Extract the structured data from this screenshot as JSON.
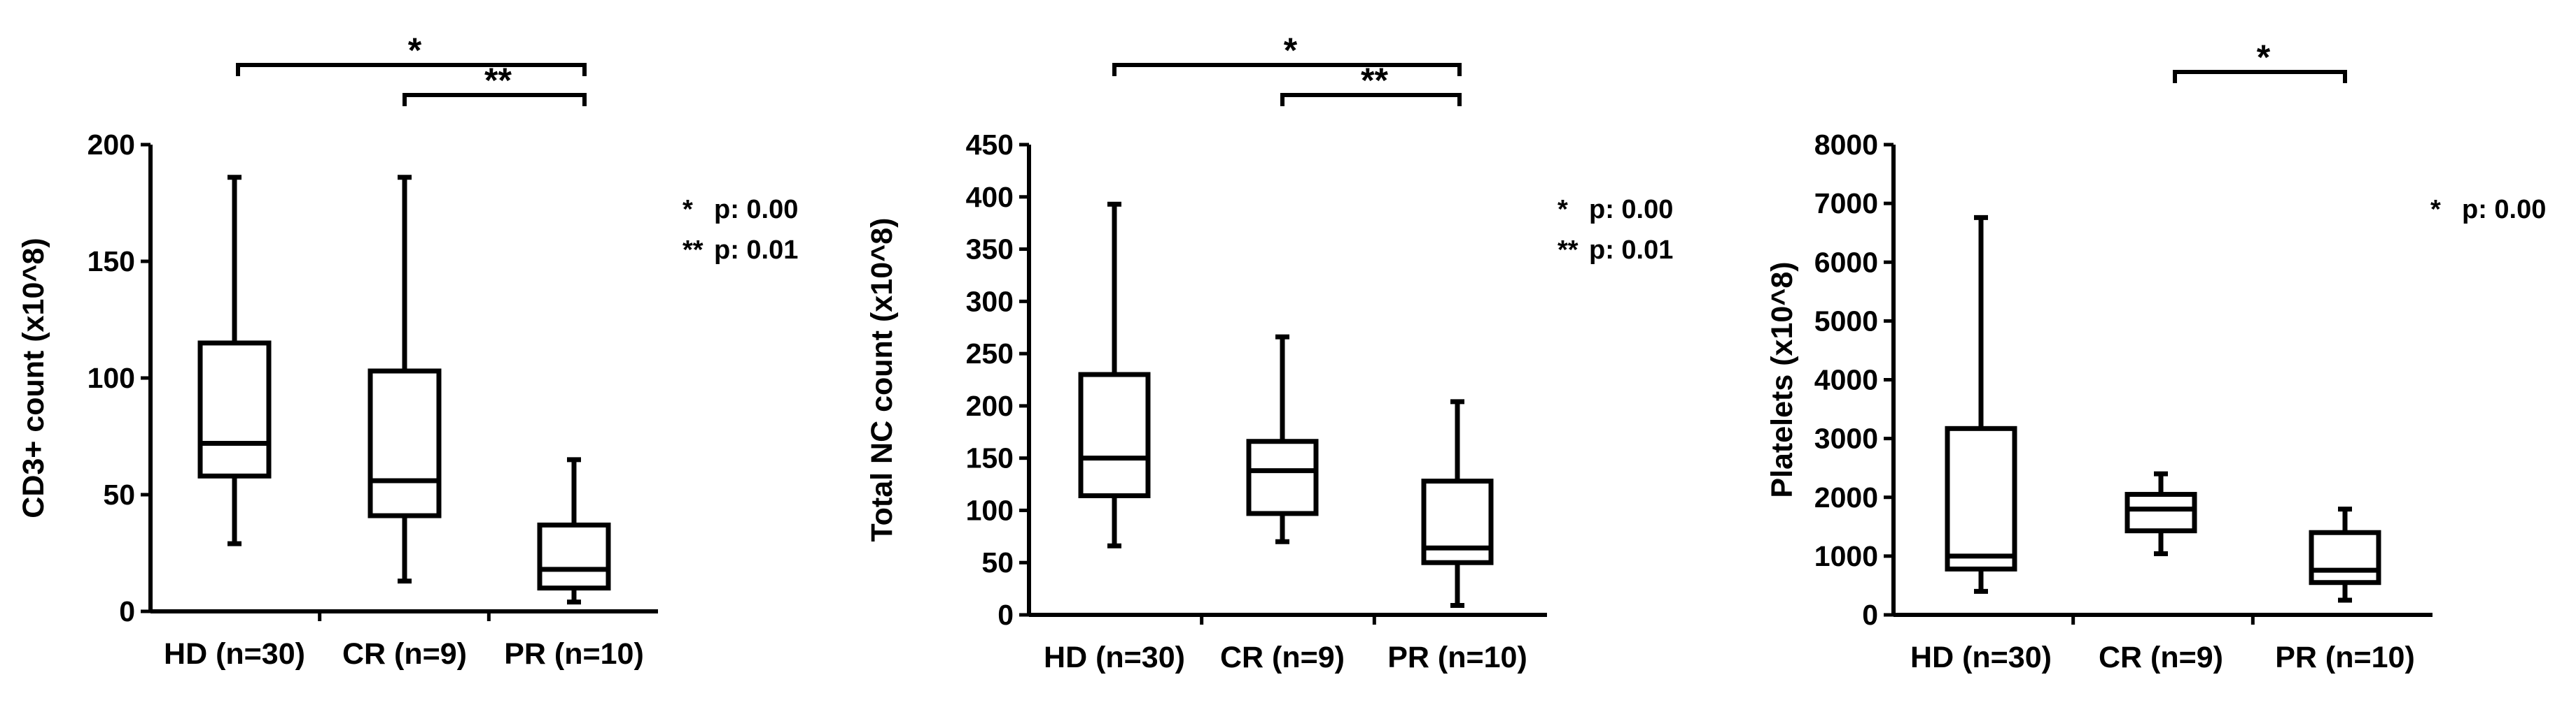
{
  "chart_data": [
    {
      "type": "box",
      "title": "",
      "xlabel": "",
      "ylabel": "CD3+ count (x10^8)",
      "ylim": [
        0,
        200
      ],
      "yticks": [
        0,
        50,
        100,
        150,
        200
      ],
      "categories": [
        "HD (n=30)",
        "CR (n=9)",
        "PR (n=10)"
      ],
      "boxes": [
        {
          "min": 29,
          "q1": 58,
          "median": 72,
          "q3": 115,
          "max": 186
        },
        {
          "min": 13,
          "q1": 41,
          "median": 56,
          "q3": 103,
          "max": 186
        },
        {
          "min": 4,
          "q1": 10,
          "median": 18,
          "q3": 37,
          "max": 65
        }
      ],
      "brackets": [
        {
          "from": 0,
          "to": 2,
          "label": "*"
        },
        {
          "from": 1,
          "to": 2,
          "label": "**"
        }
      ],
      "notes": [
        {
          "mark": "*",
          "text": "p: 0.00"
        },
        {
          "mark": "**",
          "text": "p: 0.01"
        }
      ]
    },
    {
      "type": "box",
      "title": "",
      "xlabel": "",
      "ylabel": "Total NC count (x10^8)",
      "ylim": [
        0,
        450
      ],
      "yticks": [
        0,
        50,
        100,
        150,
        200,
        250,
        300,
        350,
        400,
        450
      ],
      "categories": [
        "HD (n=30)",
        "CR (n=9)",
        "PR (n=10)"
      ],
      "boxes": [
        {
          "min": 66,
          "q1": 114,
          "median": 150,
          "q3": 230,
          "max": 393
        },
        {
          "min": 70,
          "q1": 97,
          "median": 138,
          "q3": 166,
          "max": 266
        },
        {
          "min": 9,
          "q1": 50,
          "median": 64,
          "q3": 128,
          "max": 204
        }
      ],
      "brackets": [
        {
          "from": 0,
          "to": 2,
          "label": "*"
        },
        {
          "from": 1,
          "to": 2,
          "label": "**"
        }
      ],
      "notes": [
        {
          "mark": "*",
          "text": "p: 0.00"
        },
        {
          "mark": "**",
          "text": "p: 0.01"
        }
      ]
    },
    {
      "type": "box",
      "title": "",
      "xlabel": "",
      "ylabel": "Platelets (x10^8)",
      "ylim": [
        0,
        8000
      ],
      "yticks": [
        0,
        1000,
        2000,
        3000,
        4000,
        5000,
        6000,
        7000,
        8000
      ],
      "categories": [
        "HD (n=30)",
        "CR (n=9)",
        "PR (n=10)"
      ],
      "boxes": [
        {
          "min": 400,
          "q1": 780,
          "median": 1000,
          "q3": 3170,
          "max": 6760
        },
        {
          "min": 1040,
          "q1": 1430,
          "median": 1800,
          "q3": 2050,
          "max": 2400
        },
        {
          "min": 250,
          "q1": 550,
          "median": 760,
          "q3": 1400,
          "max": 1800
        }
      ],
      "brackets": [
        {
          "from": 1,
          "to": 2,
          "label": "*"
        }
      ],
      "notes": [
        {
          "mark": "*",
          "text": "p: 0.00"
        }
      ]
    }
  ]
}
